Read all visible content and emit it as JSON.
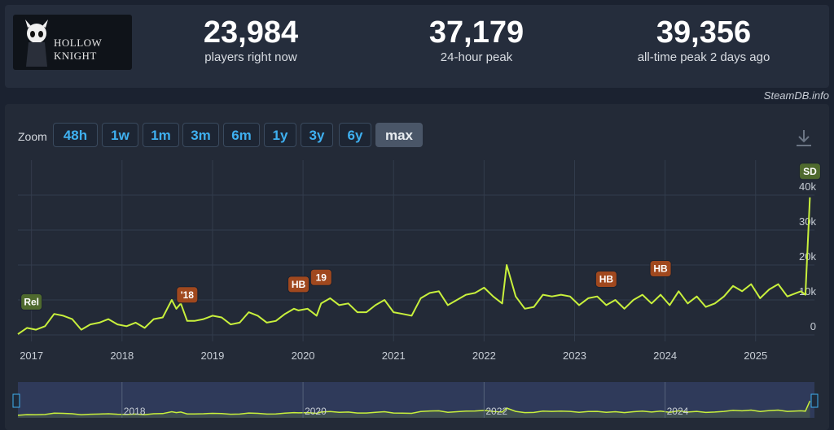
{
  "header": {
    "game_title": "HOLLOW KNIGHT",
    "stats": [
      {
        "value": "23,984",
        "label": "players right now"
      },
      {
        "value": "37,179",
        "label": "24-hour peak"
      },
      {
        "value": "39,356",
        "label": "all-time peak 2 days ago"
      }
    ]
  },
  "brand": "SteamDB.info",
  "toolbar": {
    "zoom_label": "Zoom",
    "zoom_buttons": [
      "48h",
      "1w",
      "1m",
      "3m",
      "6m",
      "1y",
      "3y",
      "6y",
      "max"
    ],
    "active": "max",
    "download_icon": "download-icon"
  },
  "chart_data": {
    "type": "line",
    "color": "#c8f03c",
    "x_ticks": [
      "2017",
      "2018",
      "2019",
      "2020",
      "2021",
      "2022",
      "2023",
      "2024",
      "2025"
    ],
    "y_ticks": [
      "0",
      "10k",
      "20k",
      "30k",
      "40k"
    ],
    "ylim": [
      0,
      40000
    ],
    "xlim": [
      2016.85,
      2025.65
    ],
    "grid": true,
    "x": [
      2016.85,
      2016.95,
      2017.05,
      2017.15,
      2017.25,
      2017.35,
      2017.45,
      2017.55,
      2017.65,
      2017.75,
      2017.85,
      2017.95,
      2018.05,
      2018.15,
      2018.25,
      2018.35,
      2018.45,
      2018.55,
      2018.6,
      2018.65,
      2018.72,
      2018.8,
      2018.9,
      2019.0,
      2019.1,
      2019.2,
      2019.3,
      2019.4,
      2019.5,
      2019.6,
      2019.7,
      2019.8,
      2019.9,
      2019.95,
      2020.05,
      2020.15,
      2020.2,
      2020.3,
      2020.4,
      2020.5,
      2020.6,
      2020.7,
      2020.8,
      2020.9,
      2021.0,
      2021.1,
      2021.2,
      2021.3,
      2021.4,
      2021.5,
      2021.6,
      2021.7,
      2021.8,
      2021.9,
      2022.0,
      2022.1,
      2022.2,
      2022.25,
      2022.35,
      2022.45,
      2022.55,
      2022.65,
      2022.75,
      2022.85,
      2022.95,
      2023.05,
      2023.15,
      2023.25,
      2023.35,
      2023.45,
      2023.55,
      2023.65,
      2023.75,
      2023.85,
      2023.95,
      2024.05,
      2024.15,
      2024.25,
      2024.35,
      2024.45,
      2024.55,
      2024.65,
      2024.75,
      2024.85,
      2024.95,
      2025.05,
      2025.15,
      2025.25,
      2025.35,
      2025.45,
      2025.5,
      2025.55,
      2025.6
    ],
    "values": [
      200,
      2000,
      1500,
      2500,
      6000,
      5500,
      4500,
      1500,
      3000,
      3500,
      4500,
      3000,
      2500,
      3500,
      2000,
      4500,
      5000,
      10000,
      7500,
      9000,
      4000,
      4000,
      4500,
      5500,
      5000,
      3000,
      3500,
      6500,
      5500,
      3500,
      4000,
      6000,
      7500,
      7000,
      7500,
      5500,
      9000,
      10500,
      8500,
      9000,
      6500,
      6500,
      8500,
      10000,
      6500,
      6000,
      5500,
      10500,
      12000,
      12500,
      8500,
      10000,
      11500,
      12000,
      13500,
      11000,
      9000,
      20000,
      11000,
      7500,
      8000,
      11500,
      11000,
      11500,
      11000,
      8500,
      10500,
      11000,
      8500,
      10000,
      7500,
      10000,
      11500,
      9000,
      11500,
      8500,
      12500,
      9000,
      11000,
      8000,
      9000,
      11000,
      14000,
      12500,
      14500,
      10500,
      13000,
      14500,
      11000,
      12000,
      12500,
      11500,
      39356
    ],
    "annotations": [
      {
        "label": "Rel",
        "x": 2017.0,
        "kind": "green"
      },
      {
        "label": "'18",
        "x": 2018.72,
        "kind": "orange"
      },
      {
        "label": "HB",
        "x": 2019.95,
        "kind": "orange"
      },
      {
        "label": "19",
        "x": 2020.2,
        "kind": "orange"
      },
      {
        "label": "HB",
        "x": 2023.35,
        "kind": "orange"
      },
      {
        "label": "HB",
        "x": 2023.95,
        "kind": "orange"
      },
      {
        "label": "SD",
        "x": 2025.6,
        "kind": "green"
      }
    ],
    "navigator_ticks": [
      "2018",
      "2020",
      "2022",
      "2024"
    ]
  }
}
